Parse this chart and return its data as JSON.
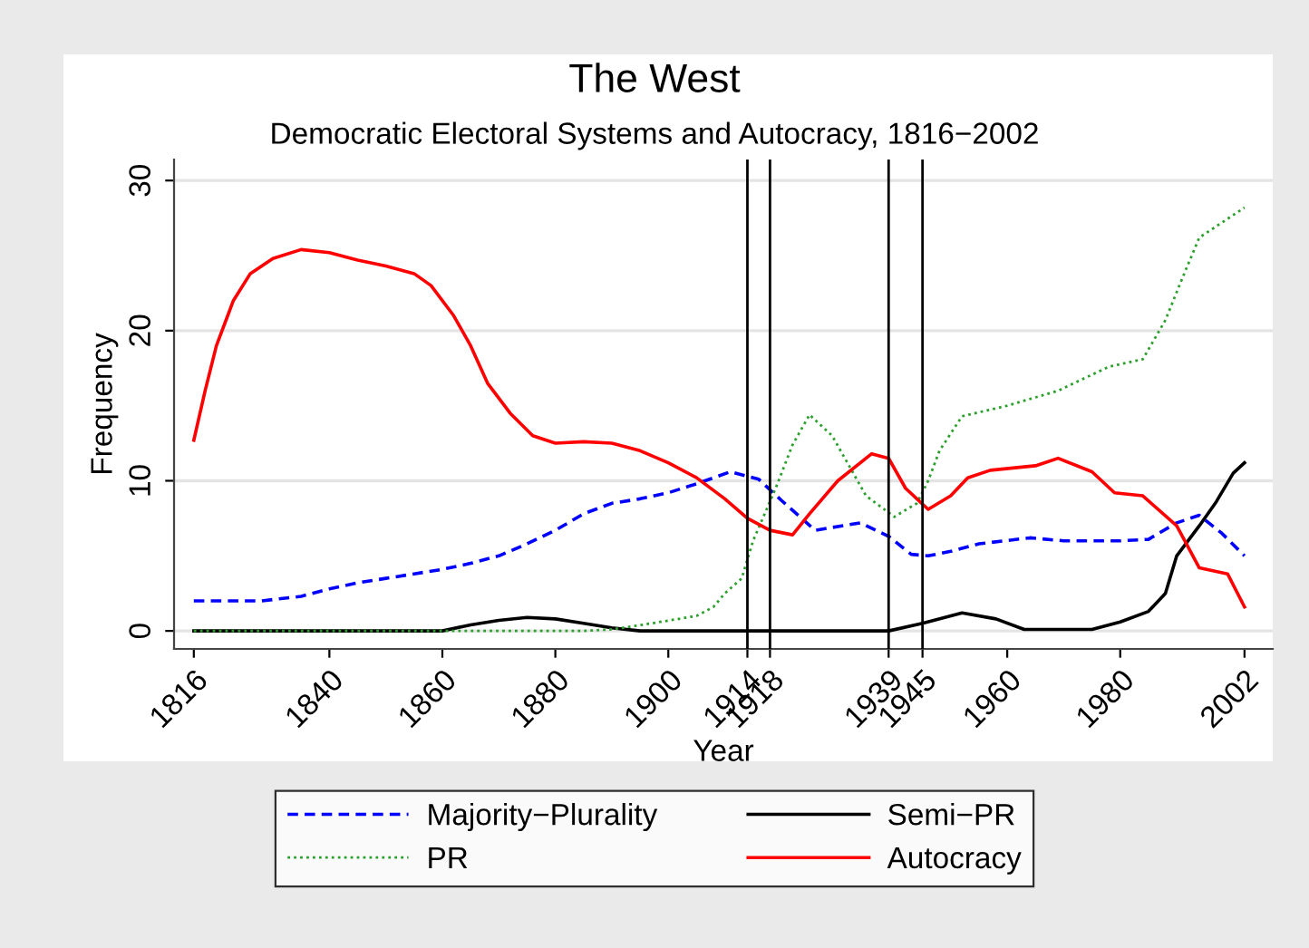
{
  "chart_data": {
    "type": "line",
    "title": "The West",
    "subtitle": "Democratic Electoral Systems and Autocracy, 1816−2002",
    "xlabel": "Year",
    "ylabel": "Frequency",
    "xlim": [
      1812.5,
      2007
    ],
    "xticks": [
      1816,
      1840,
      1860,
      1880,
      1900,
      1914,
      1918,
      1939,
      1945,
      1960,
      1980,
      2002
    ],
    "ylim": [
      -1.2,
      31.4
    ],
    "yticks": [
      0,
      10,
      20,
      30
    ],
    "grid": "y",
    "legend": "bottom",
    "marker": "none",
    "ref_lines": [
      {
        "axis": "x",
        "value": 1914,
        "color": "#000000"
      },
      {
        "axis": "x",
        "value": 1918,
        "color": "#000000"
      },
      {
        "axis": "x",
        "value": 1939,
        "color": "#000000"
      },
      {
        "axis": "x",
        "value": 1945,
        "color": "#000000"
      }
    ],
    "series": [
      {
        "name": "Majority−Plurality",
        "color": "#0000ff",
        "line_style": "dashed",
        "x": [
          1816,
          1828,
          1835,
          1840,
          1845,
          1850,
          1855,
          1860,
          1865,
          1870,
          1875,
          1880,
          1885,
          1890,
          1895,
          1900,
          1905,
          1911,
          1916,
          1920,
          1926,
          1934,
          1939,
          1943,
          1946,
          1950,
          1955,
          1964,
          1970,
          1980,
          1985,
          1990,
          1994,
          1998,
          2002
        ],
        "values": [
          2,
          2,
          2.3,
          2.8,
          3.2,
          3.5,
          3.8,
          4.1,
          4.5,
          5,
          5.8,
          6.7,
          7.8,
          8.5,
          8.8,
          9.2,
          9.8,
          10.6,
          10.1,
          8.7,
          6.7,
          7.2,
          6.3,
          5.1,
          5,
          5.3,
          5.8,
          6.2,
          6,
          6,
          6.1,
          7.2,
          7.7,
          6.5,
          5
        ]
      },
      {
        "name": "Semi−PR",
        "color": "#000000",
        "line_style": "solid",
        "x": [
          1816,
          1860,
          1865,
          1870,
          1875,
          1880,
          1885,
          1890,
          1895,
          1939,
          1945,
          1952,
          1958,
          1963,
          1975,
          1980,
          1985,
          1988,
          1990,
          1994,
          1997,
          2000,
          2002
        ],
        "values": [
          0,
          0,
          0.4,
          0.7,
          0.9,
          0.8,
          0.5,
          0.2,
          0,
          0,
          0.5,
          1.2,
          0.8,
          0.1,
          0.1,
          0.6,
          1.3,
          2.5,
          5,
          7,
          8.6,
          10.5,
          11.2
        ]
      },
      {
        "name": "PR",
        "color": "#2ca02c",
        "line_style": "dotted",
        "x": [
          1816,
          1885,
          1890,
          1897,
          1905,
          1908,
          1910,
          1913,
          1915,
          1919,
          1922,
          1925,
          1929,
          1932,
          1935,
          1940,
          1944,
          1946,
          1948,
          1952,
          1960,
          1969,
          1978,
          1984,
          1988,
          1991,
          1994,
          1998,
          2002
        ],
        "values": [
          0,
          0,
          0.1,
          0.5,
          1,
          1.6,
          2.5,
          3.5,
          6,
          9.5,
          12.4,
          14.4,
          13,
          11,
          9,
          7.6,
          8.5,
          10,
          12,
          14.3,
          15,
          16,
          17.6,
          18.1,
          20.7,
          23.5,
          26.2,
          27.2,
          28.2
        ]
      },
      {
        "name": "Autocracy",
        "color": "#ff0000",
        "line_style": "solid",
        "x": [
          1816,
          1818,
          1820,
          1823,
          1826,
          1830,
          1835,
          1840,
          1845,
          1850,
          1855,
          1858,
          1862,
          1865,
          1868,
          1872,
          1876,
          1880,
          1885,
          1890,
          1895,
          1900,
          1905,
          1910,
          1914,
          1918,
          1922,
          1925,
          1930,
          1936,
          1939,
          1942,
          1946,
          1950,
          1953,
          1957,
          1965,
          1969,
          1975,
          1979,
          1984,
          1990,
          1994,
          1999,
          2002
        ],
        "values": [
          12.7,
          16,
          19,
          22,
          23.8,
          24.8,
          25.4,
          25.2,
          24.7,
          24.3,
          23.8,
          23,
          21,
          19,
          16.5,
          14.5,
          13,
          12.5,
          12.6,
          12.5,
          12,
          11.2,
          10.2,
          8.8,
          7.5,
          6.7,
          6.4,
          7.8,
          10,
          11.8,
          11.5,
          9.5,
          8.1,
          9,
          10.2,
          10.7,
          11,
          11.5,
          10.6,
          9.2,
          9,
          7,
          4.2,
          3.8,
          1.6
        ]
      }
    ]
  }
}
